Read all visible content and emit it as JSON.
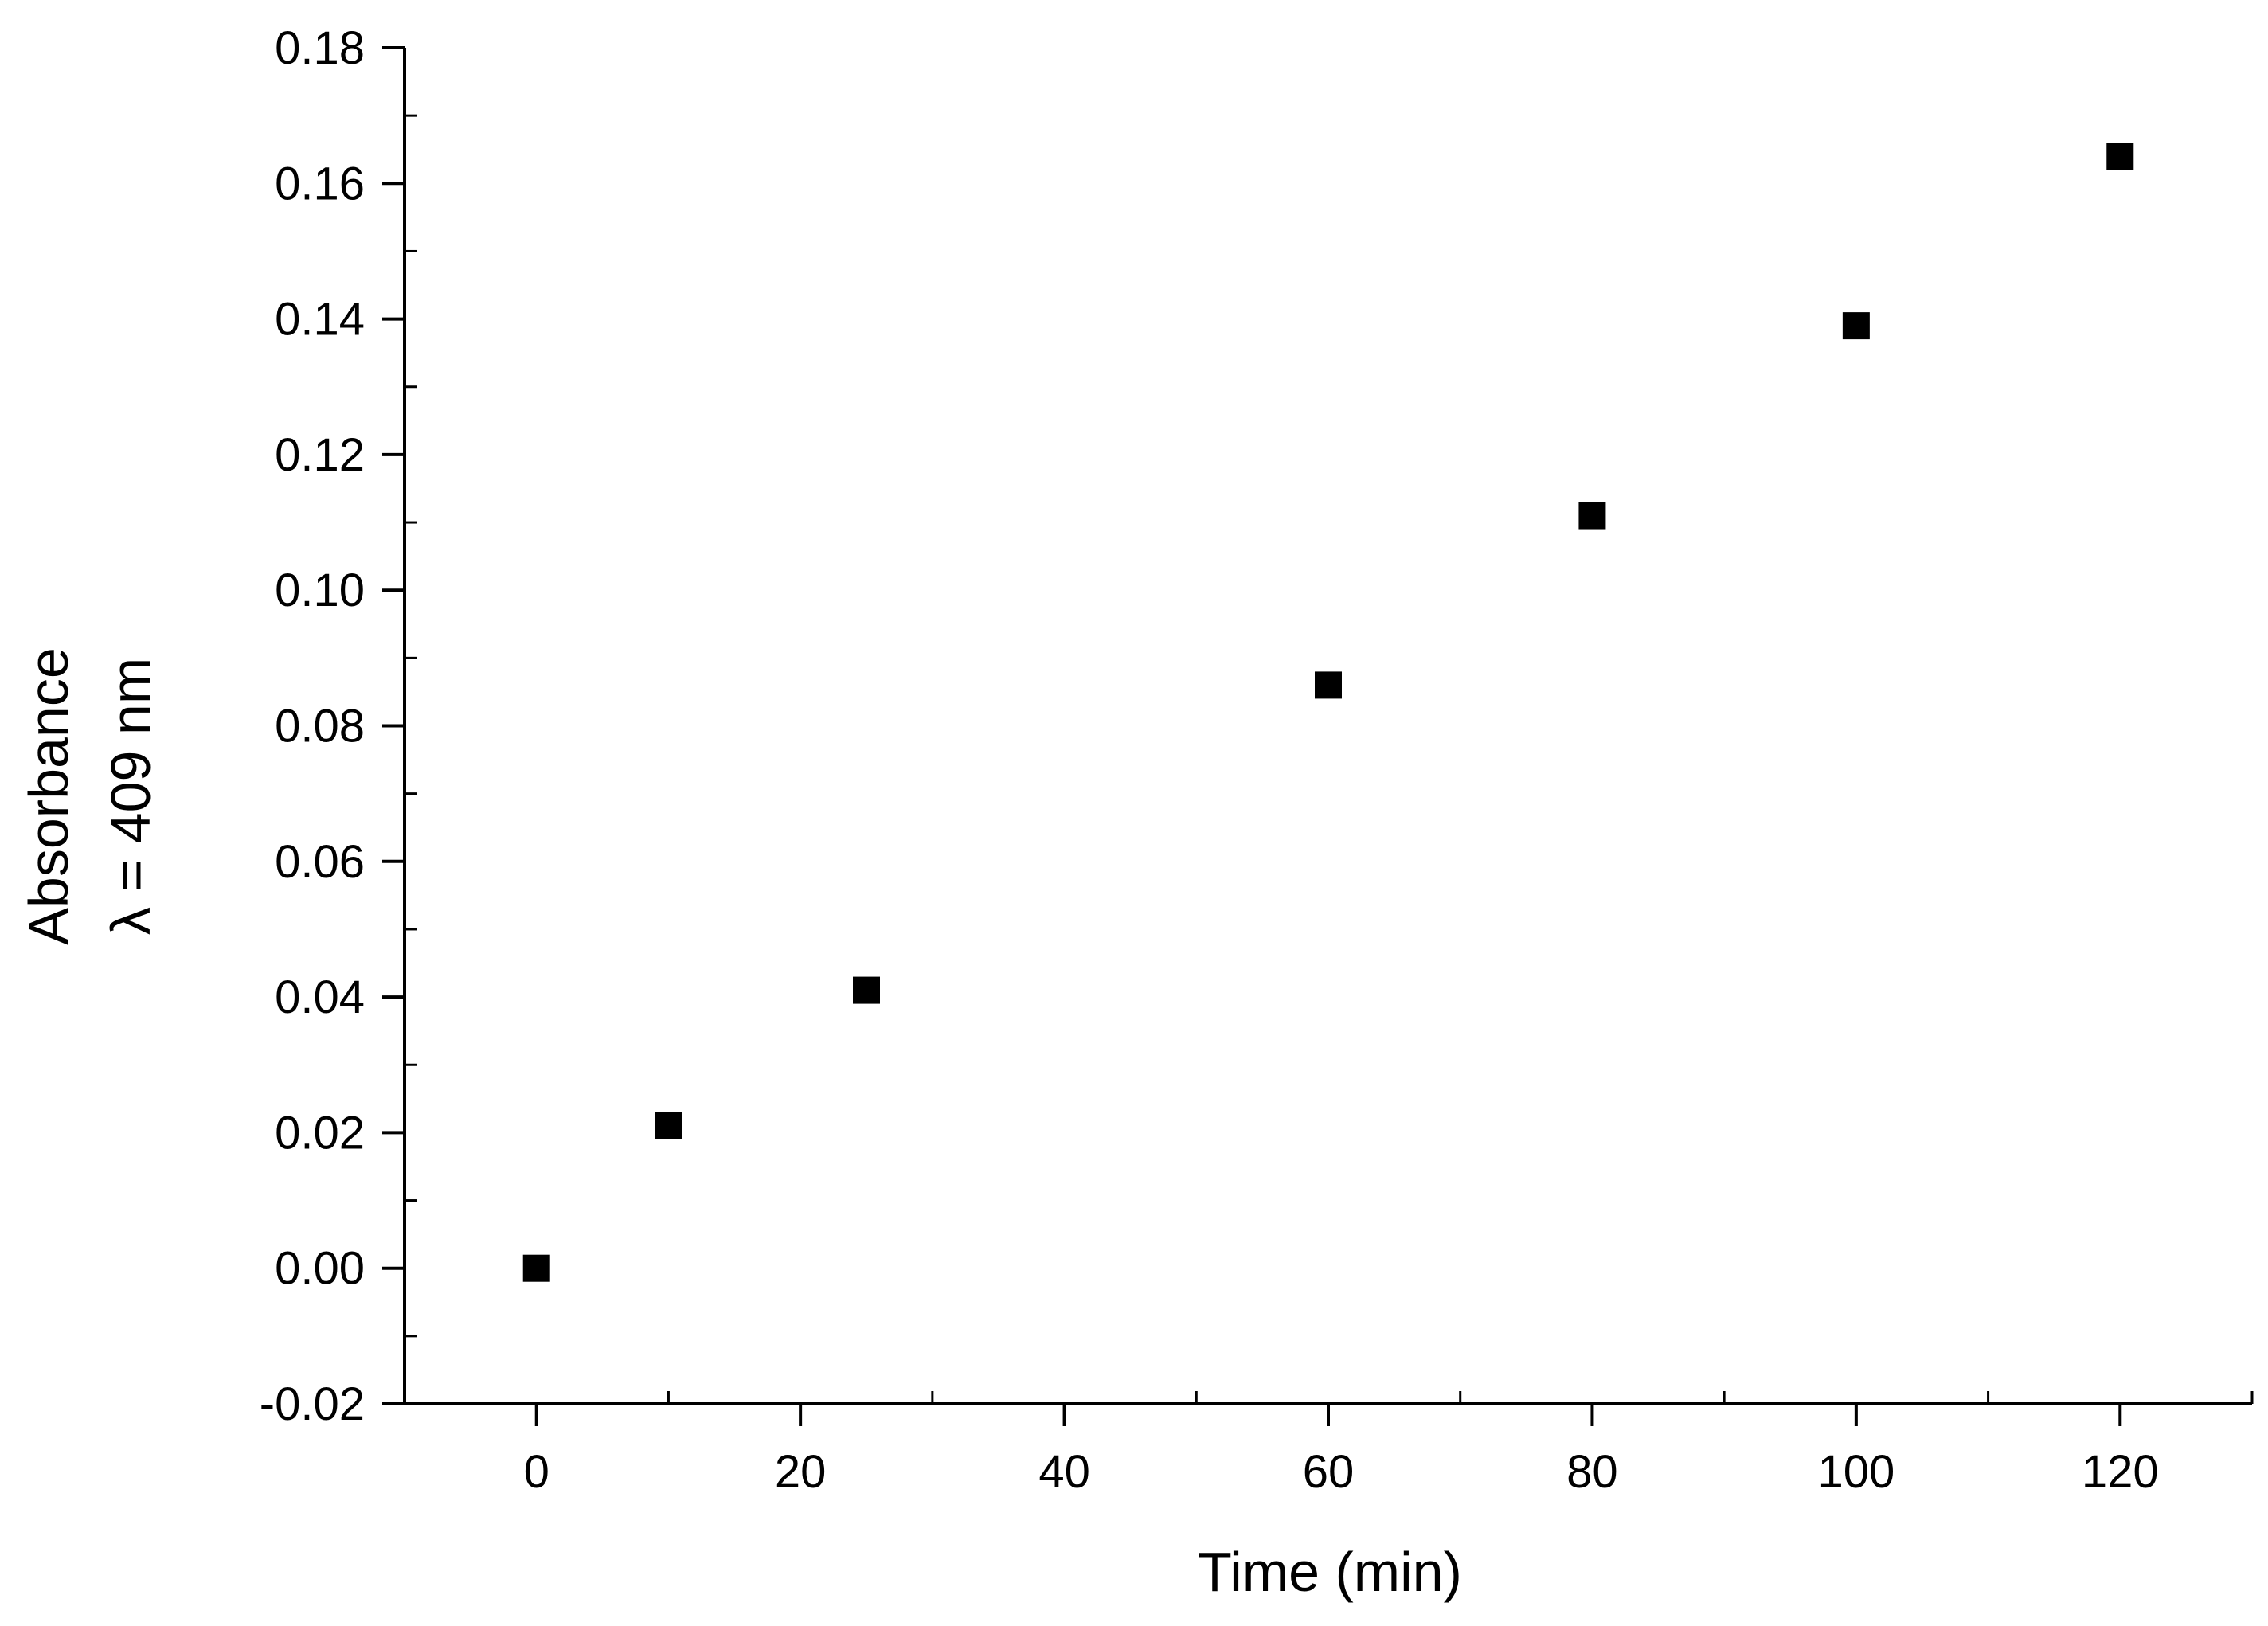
{
  "chart_data": {
    "type": "scatter",
    "title": "",
    "xlabel": "Time (min)",
    "ylabel_lines": [
      "Absorbance",
      "λ = 409 nm"
    ],
    "xlim": [
      -10,
      130
    ],
    "ylim": [
      -0.02,
      0.18
    ],
    "x_ticks": [
      0,
      20,
      40,
      60,
      80,
      100,
      120
    ],
    "x_tick_labels": [
      "0",
      "20",
      "40",
      "60",
      "80",
      "100",
      "120"
    ],
    "y_ticks": [
      -0.02,
      0.0,
      0.02,
      0.04,
      0.06,
      0.08,
      0.1,
      0.12,
      0.14,
      0.16,
      0.18
    ],
    "y_tick_labels": [
      "-0.02",
      "0.00",
      "0.02",
      "0.04",
      "0.06",
      "0.08",
      "0.10",
      "0.12",
      "0.14",
      "0.16",
      "0.18"
    ],
    "grid": false,
    "legend": "none",
    "marker": "square",
    "marker_color": "#000000",
    "series": [
      {
        "x": [
          0,
          10,
          25,
          60,
          80,
          100,
          120
        ],
        "y": [
          0.0,
          0.021,
          0.041,
          0.086,
          0.111,
          0.139,
          0.164
        ]
      }
    ]
  }
}
